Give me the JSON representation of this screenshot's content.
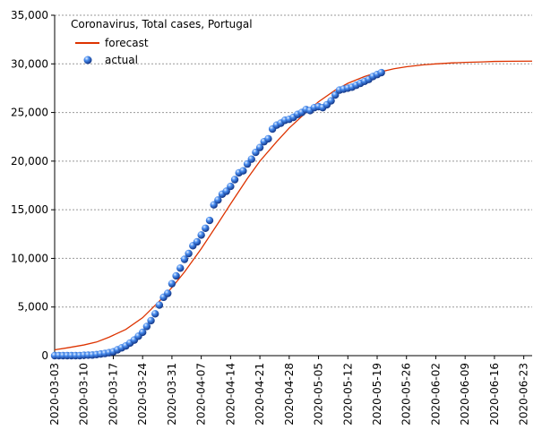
{
  "chart_data": {
    "type": "line",
    "title": "Coronavirus, Total cases, Portugal",
    "xlabel": "",
    "ylabel": "",
    "ylim": [
      0,
      35000
    ],
    "yticks": [
      0,
      5000,
      10000,
      15000,
      20000,
      25000,
      30000,
      35000
    ],
    "ytick_labels": [
      "0",
      "5,000",
      "10,000",
      "15,000",
      "20,000",
      "25,000",
      "30,000",
      "35,000"
    ],
    "xlim": [
      "2020-03-03",
      "2020-06-25"
    ],
    "xticks": [
      "2020-03-03",
      "2020-03-10",
      "2020-03-17",
      "2020-03-24",
      "2020-03-31",
      "2020-04-07",
      "2020-04-14",
      "2020-04-21",
      "2020-04-28",
      "2020-05-05",
      "2020-05-12",
      "2020-05-19",
      "2020-05-26",
      "2020-06-02",
      "2020-06-09",
      "2020-06-16",
      "2020-06-23"
    ],
    "grid": "horizontal dashed",
    "legend_placement": "top-left",
    "colors": {
      "forecast": "#dd3300",
      "actual": "#1a5fd0",
      "grid": "#999999"
    },
    "series": [
      {
        "name": "forecast",
        "style": "line",
        "points": [
          [
            "2020-03-03",
            600
          ],
          [
            "2020-03-06",
            800
          ],
          [
            "2020-03-10",
            1100
          ],
          [
            "2020-03-13",
            1400
          ],
          [
            "2020-03-16",
            1900
          ],
          [
            "2020-03-20",
            2700
          ],
          [
            "2020-03-24",
            3900
          ],
          [
            "2020-03-28",
            5600
          ],
          [
            "2020-03-31",
            7000
          ],
          [
            "2020-04-03",
            8600
          ],
          [
            "2020-04-07",
            11000
          ],
          [
            "2020-04-11",
            13600
          ],
          [
            "2020-04-14",
            15600
          ],
          [
            "2020-04-18",
            18200
          ],
          [
            "2020-04-21",
            20000
          ],
          [
            "2020-04-25",
            22000
          ],
          [
            "2020-04-28",
            23400
          ],
          [
            "2020-05-02",
            25000
          ],
          [
            "2020-05-05",
            26100
          ],
          [
            "2020-05-09",
            27300
          ],
          [
            "2020-05-12",
            28000
          ],
          [
            "2020-05-16",
            28700
          ],
          [
            "2020-05-19",
            29100
          ],
          [
            "2020-05-23",
            29500
          ],
          [
            "2020-05-26",
            29700
          ],
          [
            "2020-05-30",
            29900
          ],
          [
            "2020-06-02",
            30000
          ],
          [
            "2020-06-06",
            30100
          ],
          [
            "2020-06-09",
            30150
          ],
          [
            "2020-06-13",
            30200
          ],
          [
            "2020-06-16",
            30250
          ],
          [
            "2020-06-20",
            30270
          ],
          [
            "2020-06-25",
            30280
          ]
        ]
      },
      {
        "name": "actual",
        "style": "scatter",
        "points": [
          [
            "2020-03-03",
            0
          ],
          [
            "2020-03-04",
            0
          ],
          [
            "2020-03-05",
            0
          ],
          [
            "2020-03-06",
            0
          ],
          [
            "2020-03-07",
            0
          ],
          [
            "2020-03-08",
            0
          ],
          [
            "2020-03-09",
            0
          ],
          [
            "2020-03-10",
            40
          ],
          [
            "2020-03-11",
            50
          ],
          [
            "2020-03-12",
            60
          ],
          [
            "2020-03-13",
            110
          ],
          [
            "2020-03-14",
            170
          ],
          [
            "2020-03-15",
            220
          ],
          [
            "2020-03-16",
            300
          ],
          [
            "2020-03-17",
            400
          ],
          [
            "2020-03-18",
            600
          ],
          [
            "2020-03-19",
            800
          ],
          [
            "2020-03-20",
            1000
          ],
          [
            "2020-03-21",
            1300
          ],
          [
            "2020-03-22",
            1600
          ],
          [
            "2020-03-23",
            2000
          ],
          [
            "2020-03-24",
            2400
          ],
          [
            "2020-03-25",
            3000
          ],
          [
            "2020-03-26",
            3600
          ],
          [
            "2020-03-27",
            4300
          ],
          [
            "2020-03-28",
            5200
          ],
          [
            "2020-03-29",
            6000
          ],
          [
            "2020-03-30",
            6400
          ],
          [
            "2020-03-31",
            7400
          ],
          [
            "2020-04-01",
            8200
          ],
          [
            "2020-04-02",
            9000
          ],
          [
            "2020-04-03",
            9900
          ],
          [
            "2020-04-04",
            10500
          ],
          [
            "2020-04-05",
            11300
          ],
          [
            "2020-04-06",
            11700
          ],
          [
            "2020-04-07",
            12400
          ],
          [
            "2020-04-08",
            13100
          ],
          [
            "2020-04-09",
            13900
          ],
          [
            "2020-04-10",
            15500
          ],
          [
            "2020-04-11",
            16000
          ],
          [
            "2020-04-12",
            16600
          ],
          [
            "2020-04-13",
            16900
          ],
          [
            "2020-04-14",
            17400
          ],
          [
            "2020-04-15",
            18100
          ],
          [
            "2020-04-16",
            18800
          ],
          [
            "2020-04-17",
            19000
          ],
          [
            "2020-04-18",
            19700
          ],
          [
            "2020-04-19",
            20200
          ],
          [
            "2020-04-20",
            20900
          ],
          [
            "2020-04-21",
            21400
          ],
          [
            "2020-04-22",
            22000
          ],
          [
            "2020-04-23",
            22300
          ],
          [
            "2020-04-24",
            23300
          ],
          [
            "2020-04-25",
            23700
          ],
          [
            "2020-04-26",
            23900
          ],
          [
            "2020-04-27",
            24200
          ],
          [
            "2020-04-28",
            24300
          ],
          [
            "2020-04-29",
            24500
          ],
          [
            "2020-04-30",
            24800
          ],
          [
            "2020-05-01",
            25000
          ],
          [
            "2020-05-02",
            25300
          ],
          [
            "2020-05-03",
            25200
          ],
          [
            "2020-05-04",
            25500
          ],
          [
            "2020-05-05",
            25600
          ],
          [
            "2020-05-06",
            25500
          ],
          [
            "2020-05-07",
            25800
          ],
          [
            "2020-05-08",
            26200
          ],
          [
            "2020-05-09",
            26800
          ],
          [
            "2020-05-10",
            27300
          ],
          [
            "2020-05-11",
            27400
          ],
          [
            "2020-05-12",
            27500
          ],
          [
            "2020-05-13",
            27600
          ],
          [
            "2020-05-14",
            27800
          ],
          [
            "2020-05-15",
            28000
          ],
          [
            "2020-05-16",
            28200
          ],
          [
            "2020-05-17",
            28400
          ],
          [
            "2020-05-18",
            28700
          ],
          [
            "2020-05-19",
            28900
          ],
          [
            "2020-05-20",
            29100
          ]
        ]
      }
    ]
  }
}
